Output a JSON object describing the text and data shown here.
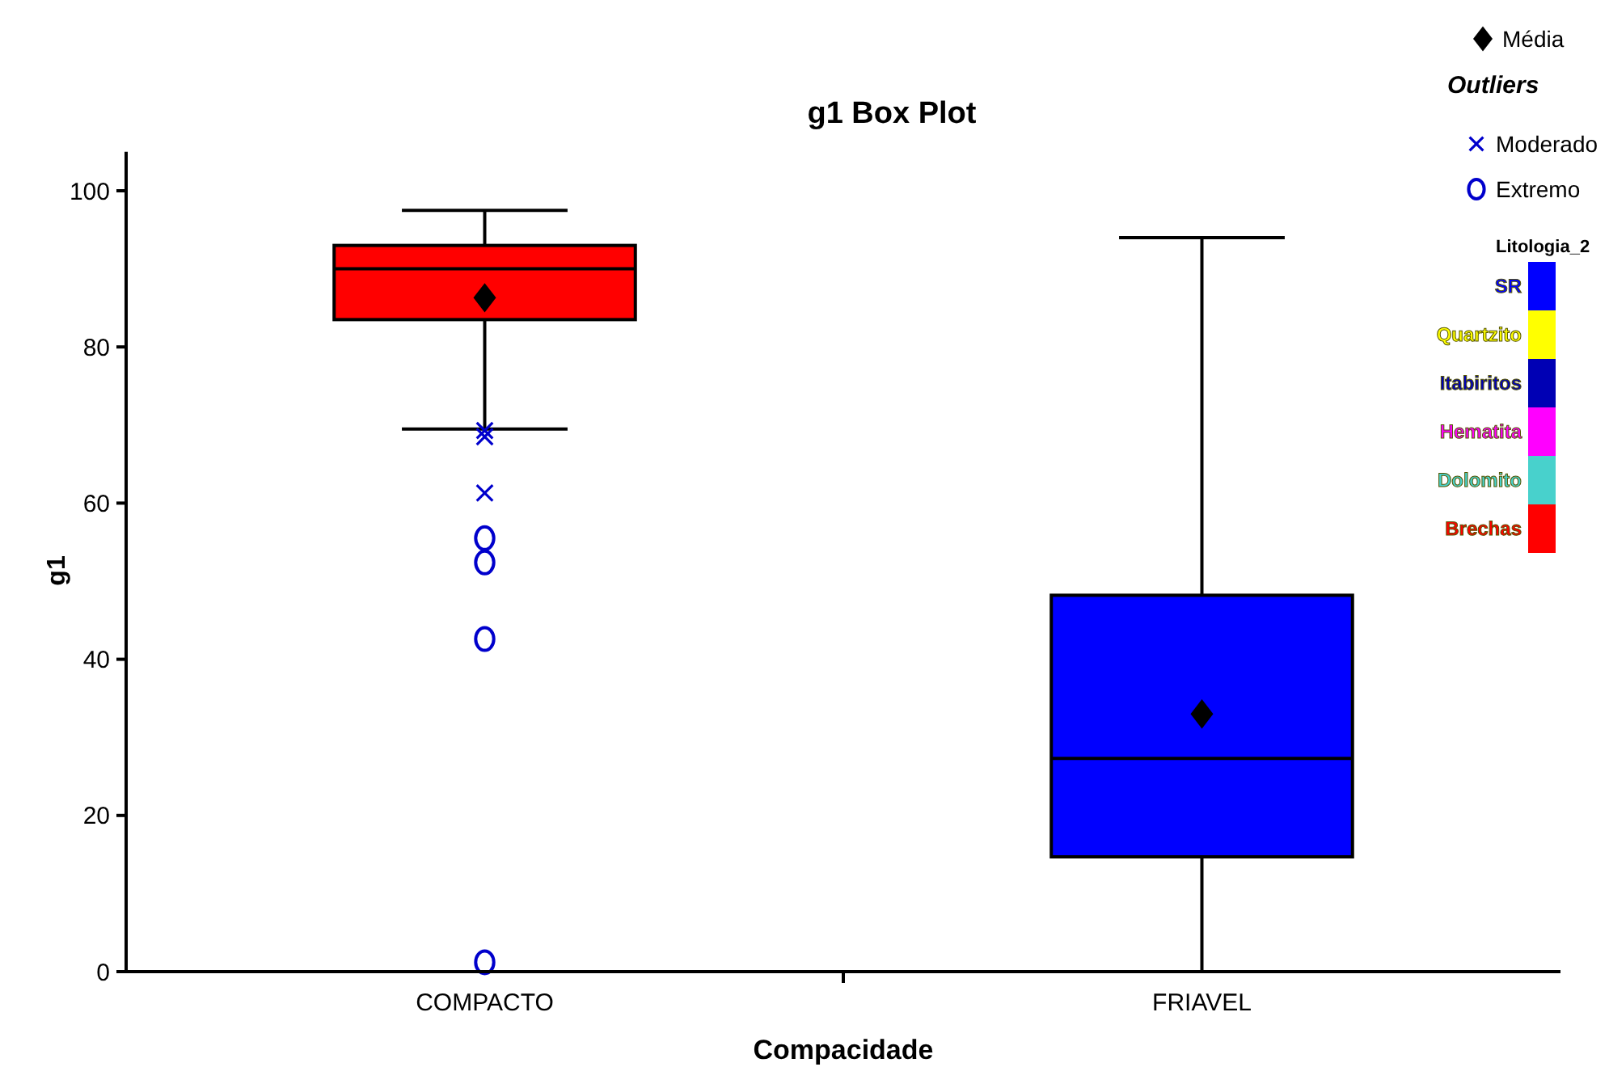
{
  "chart_data": {
    "type": "box",
    "title": "g1 Box Plot",
    "xlabel": "Compacidade",
    "ylabel": "g1",
    "categories": [
      "COMPACTO",
      "FRIAVEL"
    ],
    "ylim": [
      0,
      105
    ],
    "yticks": [
      0,
      20,
      40,
      60,
      80,
      100
    ],
    "grid": false,
    "legend": "right",
    "legend_title": "Litologia_2",
    "annotations": [
      "Outliers"
    ],
    "series": [
      {
        "colors": [
          "#ff0000",
          "#0000ff"
        ],
        "boxes": [
          {
            "low": 69.5,
            "q1": 83.5,
            "median": 90,
            "q3": 93,
            "high": 97.5
          },
          {
            "low": 0,
            "q1": 14.7,
            "median": 27.3,
            "q3": 48.2,
            "high": 94
          }
        ]
      },
      {
        "type": "scatter",
        "name": "Média",
        "color": "#000000",
        "marker": "diamond",
        "x": [
          "COMPACTO",
          "FRIAVEL"
        ],
        "values": [
          86.3,
          33
        ]
      },
      {
        "type": "scatter",
        "name": "Moderado",
        "color": "#0000cc",
        "marker": "cross",
        "x": [
          "COMPACTO",
          "COMPACTO",
          "COMPACTO"
        ],
        "values": [
          68.5,
          69.3,
          61.3
        ]
      },
      {
        "type": "scatter",
        "name": "Extremo",
        "color": "#0000cc",
        "marker": "circle",
        "x": [
          "COMPACTO",
          "COMPACTO",
          "COMPACTO",
          "COMPACTO"
        ],
        "values": [
          55.5,
          52.4,
          42.6,
          1.2
        ]
      },
      {
        "type": "bar",
        "name": "SR",
        "color": "#0000ff",
        "values": [
          null,
          null
        ]
      },
      {
        "type": "bar",
        "name": "Quartzito",
        "color": "#ffff00",
        "values": [
          null,
          null
        ]
      },
      {
        "type": "bar",
        "name": "Itabiritos",
        "color": "#0000b4",
        "values": [
          null,
          null
        ]
      },
      {
        "type": "bar",
        "name": "Hematita",
        "color": "#ff00ff",
        "values": [
          null,
          null
        ]
      },
      {
        "type": "bar",
        "name": "Dolomito",
        "color": "#48d1cc",
        "values": [
          null,
          null
        ]
      },
      {
        "type": "bar",
        "name": "Brechas",
        "color": "#ff0000",
        "values": [
          null,
          null
        ]
      }
    ]
  }
}
